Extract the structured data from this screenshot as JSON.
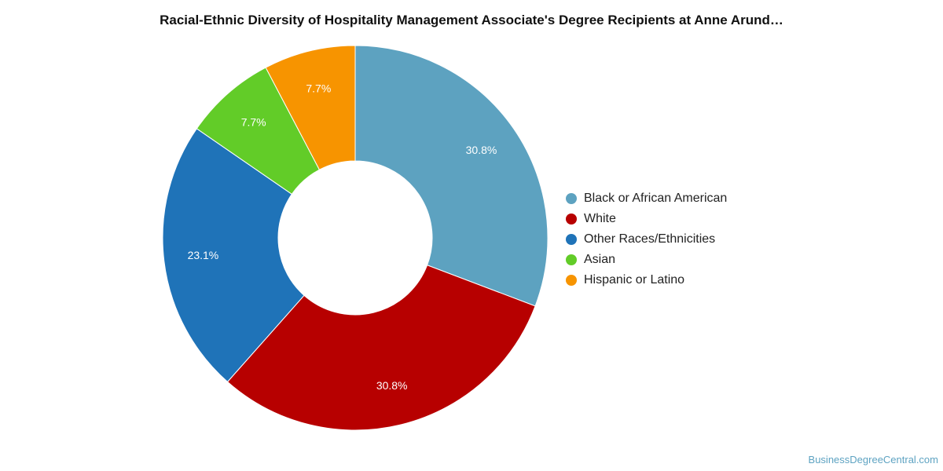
{
  "chart_data": {
    "type": "pie",
    "title": "Racial-Ethnic Diversity of Hospitality Management Associate's Degree Recipients at Anne Arund…",
    "categories": [
      "Black or African American",
      "White",
      "Other Races/Ethnicities",
      "Asian",
      "Hispanic or Latino"
    ],
    "values": [
      30.8,
      30.8,
      23.1,
      7.7,
      7.7
    ],
    "labels": [
      "30.8%",
      "30.8%",
      "23.1%",
      "7.7%",
      "7.7%"
    ],
    "colors": [
      "#5da2c0",
      "#b70000",
      "#1f73b8",
      "#62cc28",
      "#f79400"
    ],
    "donut": true,
    "legend_position": "right"
  },
  "footer": {
    "source": "BusinessDegreeCentral.com"
  }
}
